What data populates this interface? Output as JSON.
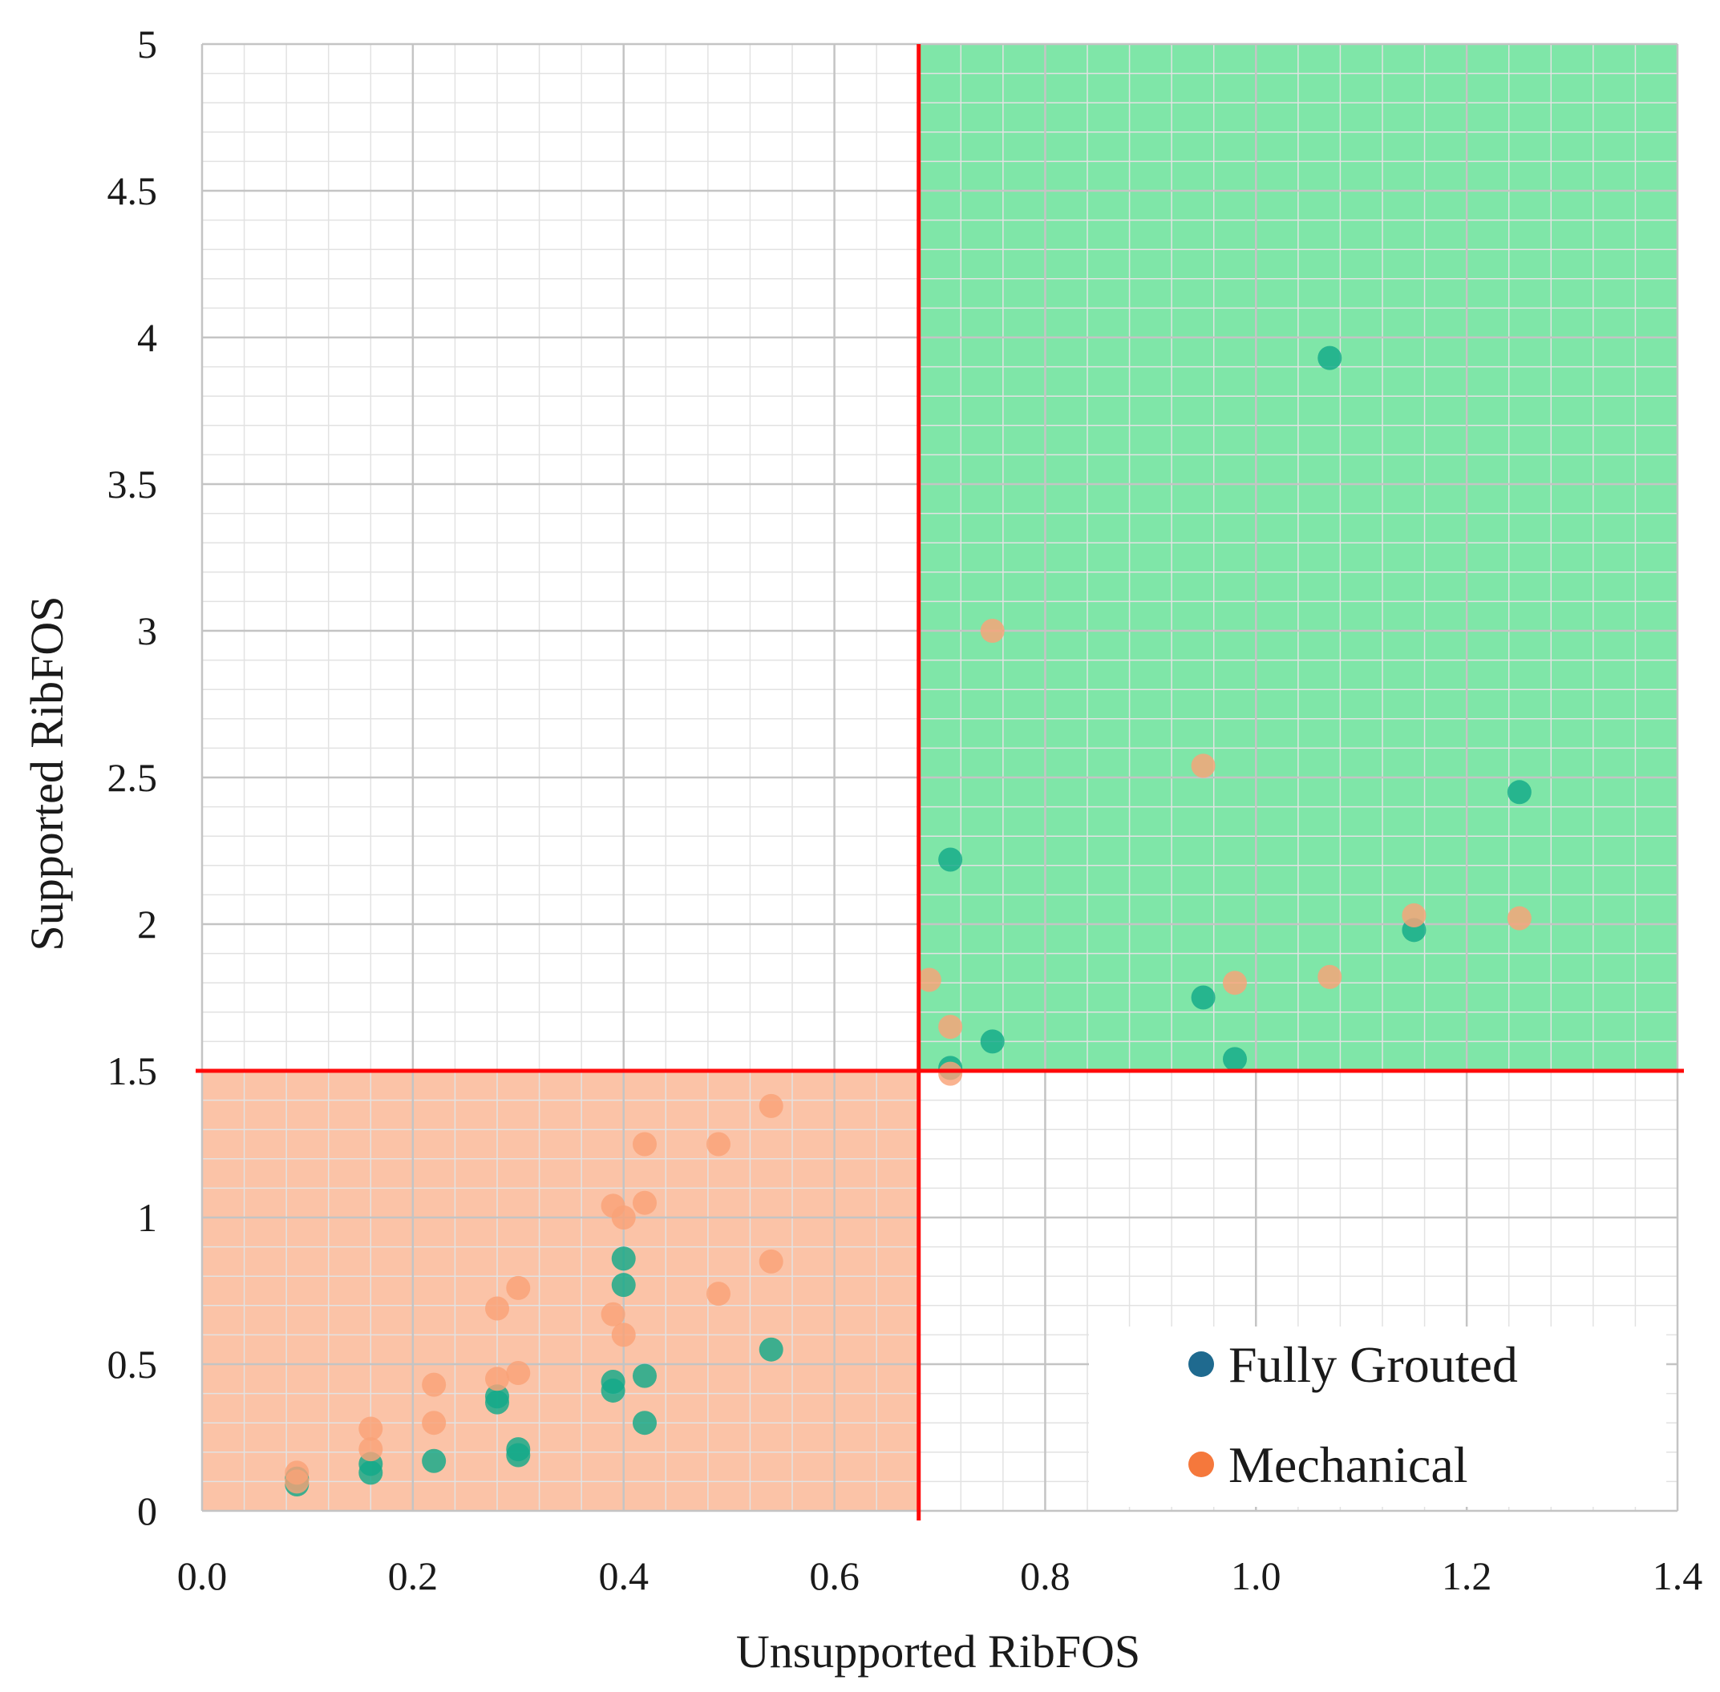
{
  "chart_data": {
    "type": "scatter",
    "title": "",
    "xlabel": "Unsupported RibFOS",
    "ylabel": "Supported RibFOS",
    "xlim": [
      0.0,
      1.4
    ],
    "ylim": [
      0,
      5
    ],
    "x_ticks": [
      "0.0",
      "0.2",
      "0.4",
      "0.6",
      "0.8",
      "1.0",
      "1.2",
      "1.4"
    ],
    "y_ticks": [
      "0",
      "0.5",
      "1",
      "1.5",
      "2",
      "2.5",
      "3",
      "3.5",
      "4",
      "4.5",
      "5"
    ],
    "x_tick_values": [
      0.0,
      0.2,
      0.4,
      0.6,
      0.8,
      1.0,
      1.2,
      1.4
    ],
    "y_tick_values": [
      0,
      0.5,
      1,
      1.5,
      2,
      2.5,
      3,
      3.5,
      4,
      4.5,
      5
    ],
    "minor_grid_x_step": 0.04,
    "minor_grid_y_step": 0.1,
    "grid": true,
    "threshold_x": 0.68,
    "threshold_y": 1.5,
    "regions": [
      {
        "name": "safe-zone",
        "x": [
          0.68,
          1.4
        ],
        "y": [
          1.5,
          5
        ],
        "color": "#7fe6a8"
      },
      {
        "name": "failure-zone",
        "x": [
          0.0,
          0.68
        ],
        "y": [
          0,
          1.5
        ],
        "color": "#fbc3a7"
      }
    ],
    "legend": {
      "position": "bottom-right",
      "entries": [
        {
          "label": "Fully Grouted",
          "color": "#1f6a8f"
        },
        {
          "label": "Mechanical",
          "color": "#f5783c"
        }
      ]
    },
    "series": [
      {
        "name": "Fully Grouted",
        "color": "#12a989",
        "points": [
          [
            0.09,
            0.11
          ],
          [
            0.09,
            0.09
          ],
          [
            0.16,
            0.16
          ],
          [
            0.16,
            0.13
          ],
          [
            0.22,
            0.17
          ],
          [
            0.28,
            0.39
          ],
          [
            0.28,
            0.37
          ],
          [
            0.3,
            0.21
          ],
          [
            0.3,
            0.19
          ],
          [
            0.39,
            0.44
          ],
          [
            0.39,
            0.41
          ],
          [
            0.4,
            0.86
          ],
          [
            0.4,
            0.77
          ],
          [
            0.42,
            0.46
          ],
          [
            0.42,
            0.3
          ],
          [
            0.54,
            0.55
          ],
          [
            0.71,
            1.51
          ],
          [
            0.71,
            2.22
          ],
          [
            0.75,
            1.6
          ],
          [
            0.95,
            1.75
          ],
          [
            0.98,
            1.54
          ],
          [
            1.07,
            3.93
          ],
          [
            1.15,
            1.98
          ],
          [
            1.25,
            2.45
          ]
        ]
      },
      {
        "name": "Mechanical",
        "color": "#f9a278",
        "points": [
          [
            0.09,
            0.13
          ],
          [
            0.09,
            0.1
          ],
          [
            0.16,
            0.28
          ],
          [
            0.16,
            0.21
          ],
          [
            0.22,
            0.43
          ],
          [
            0.22,
            0.3
          ],
          [
            0.28,
            0.69
          ],
          [
            0.28,
            0.45
          ],
          [
            0.3,
            0.76
          ],
          [
            0.3,
            0.47
          ],
          [
            0.39,
            1.04
          ],
          [
            0.39,
            0.67
          ],
          [
            0.4,
            1.0
          ],
          [
            0.4,
            0.6
          ],
          [
            0.42,
            1.25
          ],
          [
            0.42,
            1.05
          ],
          [
            0.49,
            1.25
          ],
          [
            0.49,
            0.74
          ],
          [
            0.54,
            1.38
          ],
          [
            0.54,
            0.85
          ],
          [
            0.69,
            1.81
          ],
          [
            0.71,
            1.65
          ],
          [
            0.71,
            1.49
          ],
          [
            0.75,
            3.0
          ],
          [
            0.95,
            2.54
          ],
          [
            0.98,
            1.8
          ],
          [
            1.07,
            1.82
          ],
          [
            1.15,
            2.03
          ],
          [
            1.25,
            2.02
          ]
        ]
      }
    ]
  }
}
